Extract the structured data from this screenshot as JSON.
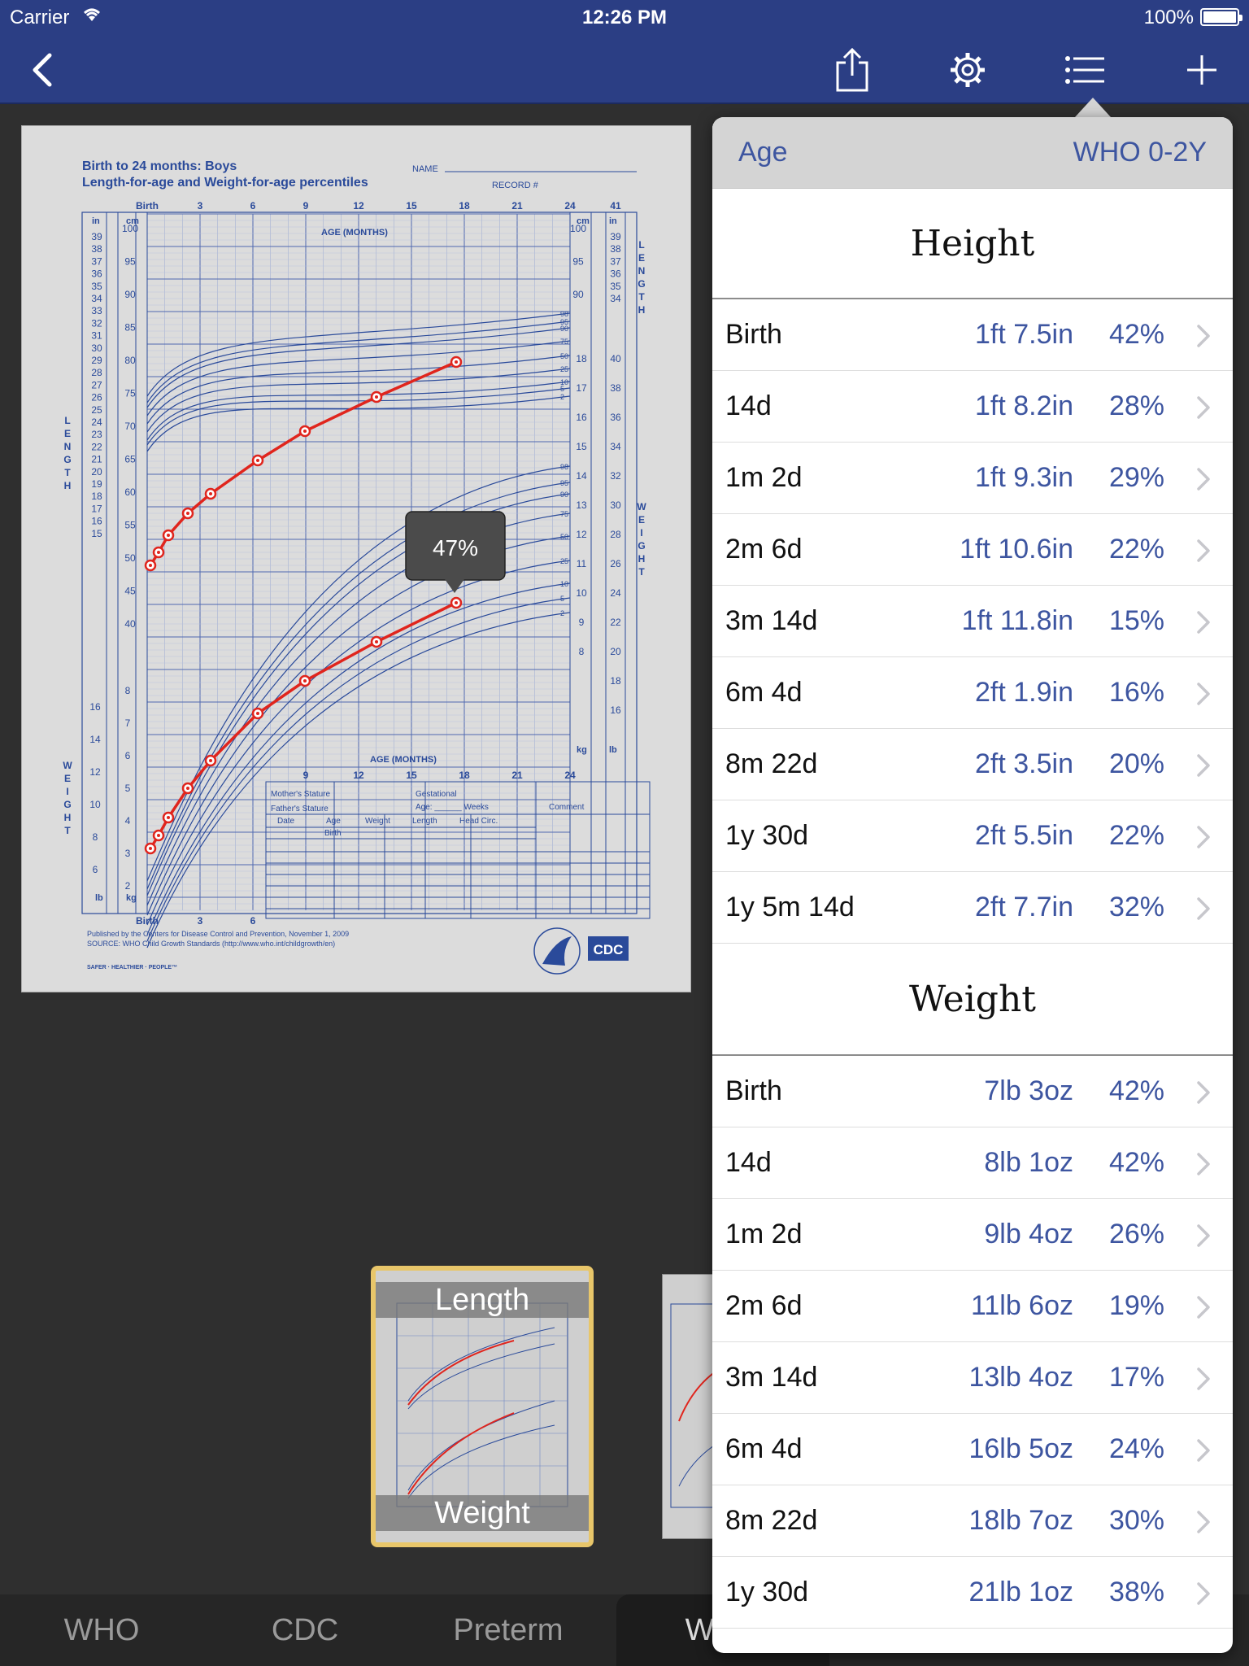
{
  "status_bar": {
    "carrier": "Carrier",
    "time": "12:26 PM",
    "battery": "100%"
  },
  "nav": {
    "icons": [
      "chevron-left-icon",
      "share-icon",
      "gear-icon",
      "list-icon",
      "plus-icon"
    ]
  },
  "chart": {
    "title_line1": "Birth to 24 months: Boys",
    "title_line2": "Length-for-age and Weight-for-age percentiles",
    "name_label": "NAME",
    "record_label": "RECORD #",
    "age_months_label": "AGE (MONTHS)",
    "length_label": "LENGTH",
    "weight_label": "WEIGHT",
    "top_ticks": [
      "Birth",
      "3",
      "6",
      "9",
      "12",
      "15",
      "18",
      "21",
      "24",
      "41"
    ],
    "bottom_ticks": [
      "Birth",
      "3",
      "6"
    ],
    "bottom_right_ticks": [
      "9",
      "12",
      "15",
      "18",
      "21",
      "24"
    ],
    "callout": "47%",
    "mothers_stature": "Mother's Stature",
    "fathers_stature": "Father's Stature",
    "gestational": "Gestational",
    "age_weeks": "Age: ______ Weeks",
    "comment": "Comment",
    "col_date": "Date",
    "col_age": "Age",
    "col_weight": "Weight",
    "col_length": "Length",
    "col_head": "Head Circ.",
    "birth_row": "Birth",
    "footer1": "Published by the Centers for Disease Control and Prevention, November 1, 2009",
    "footer2": "SOURCE: WHO Child Growth Standards (http://www.who.int/childgrowth/en)",
    "slogan": "SAFER · HEALTHIER · PEOPLE™",
    "logo": "CDC",
    "unit_in": "in",
    "unit_cm": "cm",
    "unit_lb": "lb",
    "unit_kg": "kg",
    "length_percentiles": [
      "98",
      "95",
      "90",
      "75",
      "50",
      "25",
      "10",
      "5",
      "2"
    ],
    "weight_percentiles": [
      "98",
      "95",
      "90",
      "75",
      "50",
      "25",
      "10",
      "5",
      "2"
    ]
  },
  "thumbnails": {
    "top_label": "Length",
    "bottom_label": "Weight"
  },
  "tabs": [
    "WHO",
    "CDC",
    "Preterm",
    "WHO"
  ],
  "popover": {
    "header_left": "Age",
    "header_right": "WHO 0-2Y",
    "height_title": "Height",
    "weight_title": "Weight",
    "height_rows": [
      {
        "age": "Birth",
        "value": "1ft 7.5in",
        "pct": "42%"
      },
      {
        "age": "14d",
        "value": "1ft 8.2in",
        "pct": "28%"
      },
      {
        "age": "1m 2d",
        "value": "1ft 9.3in",
        "pct": "29%"
      },
      {
        "age": "2m 6d",
        "value": "1ft 10.6in",
        "pct": "22%"
      },
      {
        "age": "3m 14d",
        "value": "1ft 11.8in",
        "pct": "15%"
      },
      {
        "age": "6m 4d",
        "value": "2ft 1.9in",
        "pct": "16%"
      },
      {
        "age": "8m 22d",
        "value": "2ft 3.5in",
        "pct": "20%"
      },
      {
        "age": "1y 30d",
        "value": "2ft 5.5in",
        "pct": "22%"
      },
      {
        "age": "1y 5m 14d",
        "value": "2ft 7.7in",
        "pct": "32%"
      }
    ],
    "weight_rows": [
      {
        "age": "Birth",
        "value": "7lb 3oz",
        "pct": "42%"
      },
      {
        "age": "14d",
        "value": "8lb 1oz",
        "pct": "42%"
      },
      {
        "age": "1m 2d",
        "value": "9lb 4oz",
        "pct": "26%"
      },
      {
        "age": "2m 6d",
        "value": "11lb 6oz",
        "pct": "19%"
      },
      {
        "age": "3m 14d",
        "value": "13lb 4oz",
        "pct": "17%"
      },
      {
        "age": "6m 4d",
        "value": "16lb 5oz",
        "pct": "24%"
      },
      {
        "age": "8m 22d",
        "value": "18lb 7oz",
        "pct": "30%"
      },
      {
        "age": "1y 30d",
        "value": "21lb 1oz",
        "pct": "38%"
      }
    ]
  }
}
